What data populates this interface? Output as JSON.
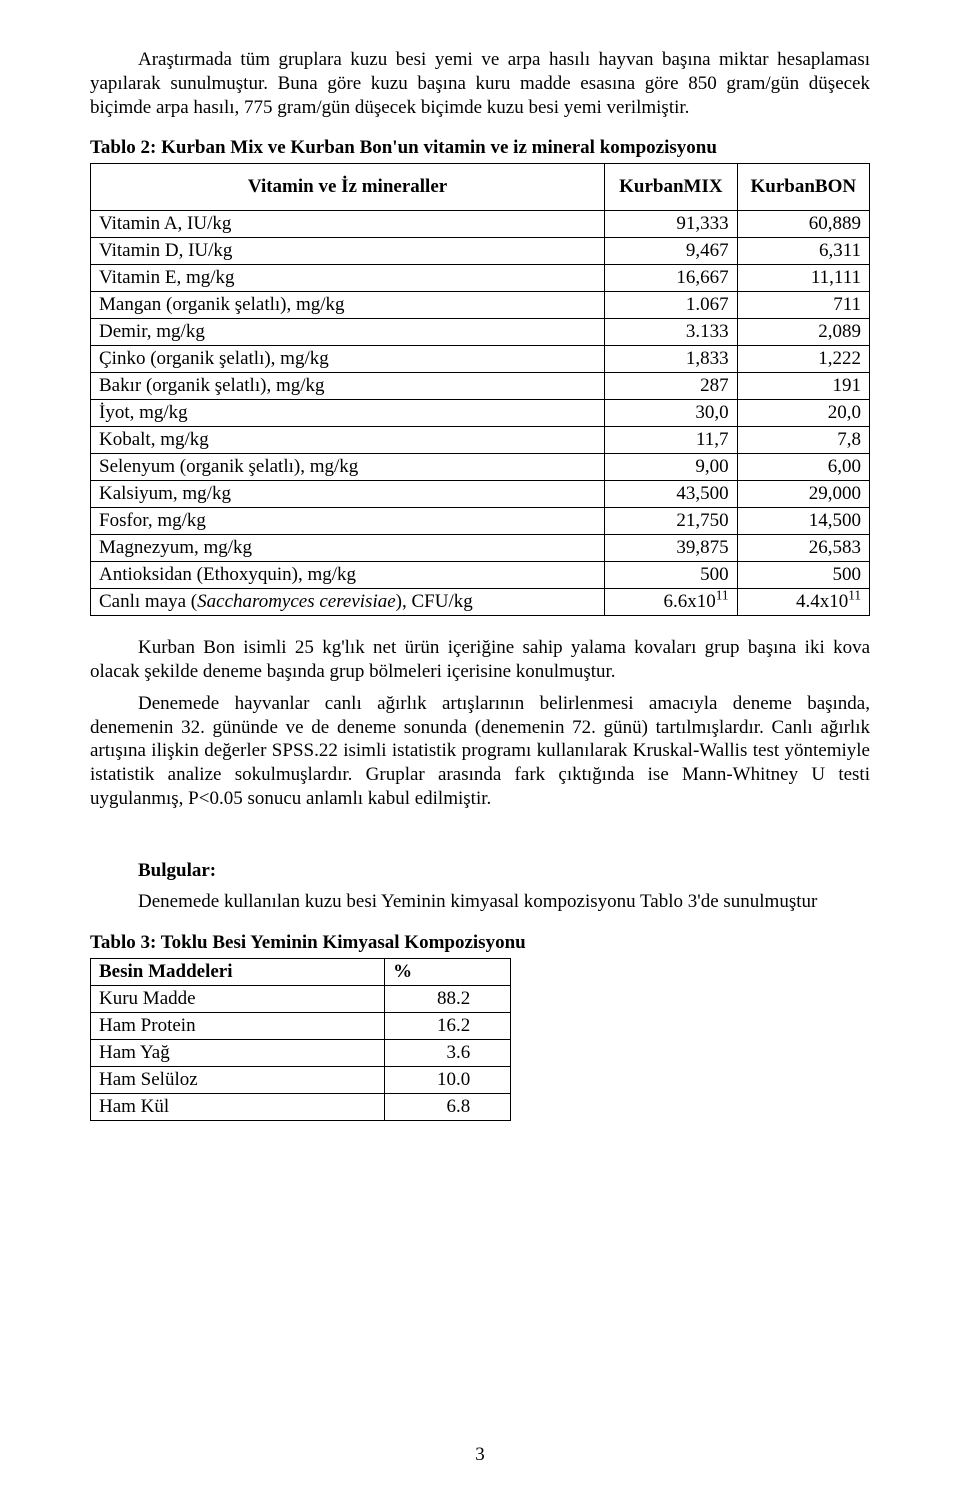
{
  "para1": "Araştırmada tüm gruplara kuzu besi yemi ve arpa hasılı hayvan başına miktar hesaplaması yapılarak sunulmuştur. Buna göre kuzu başına kuru madde esasına göre 850 gram/gün düşecek biçimde arpa hasılı, 775 gram/gün düşecek biçimde kuzu besi yemi verilmiştir.",
  "table2": {
    "caption": "Tablo 2: Kurban Mix ve Kurban Bon'un vitamin ve iz mineral kompozisyonu",
    "headers": [
      "Vitamin ve İz mineraller",
      "KurbanMIX",
      "KurbanBON"
    ],
    "rows": [
      {
        "label": "Vitamin A, IU/kg",
        "mix": "91,333",
        "bon": "60,889"
      },
      {
        "label": "Vitamin D, IU/kg",
        "mix": "9,467",
        "bon": "6,311"
      },
      {
        "label": "Vitamin E, mg/kg",
        "mix": "16,667",
        "bon": "11,111"
      },
      {
        "label": "Mangan (organik şelatlı), mg/kg",
        "mix": "1.067",
        "bon": "711"
      },
      {
        "label": "Demir, mg/kg",
        "mix": "3.133",
        "bon": "2,089"
      },
      {
        "label": "Çinko (organik şelatlı), mg/kg",
        "mix": "1,833",
        "bon": "1,222"
      },
      {
        "label": "Bakır (organik şelatlı), mg/kg",
        "mix": "287",
        "bon": "191"
      },
      {
        "label": "İyot, mg/kg",
        "mix": "30,0",
        "bon": "20,0"
      },
      {
        "label": "Kobalt, mg/kg",
        "mix": "11,7",
        "bon": "7,8"
      },
      {
        "label": "Selenyum (organik şelatlı), mg/kg",
        "mix": "9,00",
        "bon": "6,00"
      },
      {
        "label": "Kalsiyum, mg/kg",
        "mix": "43,500",
        "bon": "29,000"
      },
      {
        "label": "Fosfor, mg/kg",
        "mix": "21,750",
        "bon": "14,500"
      },
      {
        "label": "Magnezyum, mg/kg",
        "mix": "39,875",
        "bon": "26,583"
      },
      {
        "label": "Antioksidan (Ethoxyquin), mg/kg",
        "mix": "500",
        "bon": "500"
      }
    ],
    "lastrow": {
      "label_pre": "Canlı maya (",
      "label_italic": "Saccharomyces cerevisiae",
      "label_post": "), CFU/kg",
      "mix_base": "6.6x10",
      "mix_sup": "11",
      "bon_base": "4.4x10",
      "bon_sup": "11"
    }
  },
  "para2": "Kurban Bon isimli 25 kg'lık net ürün içeriğine sahip yalama kovaları grup başına iki kova olacak şekilde deneme başında grup bölmeleri içerisine konulmuştur.",
  "para3": "Denemede hayvanlar canlı ağırlık artışlarının belirlenmesi amacıyla deneme başında, denemenin 32. gününde ve de deneme sonunda (denemenin 72. günü) tartılmışlardır.  Canlı ağırlık artışına ilişkin değerler SPSS.22 isimli istatistik programı kullanılarak Kruskal-Wallis test yöntemiyle istatistik analize sokulmuşlardır. Gruplar arasında fark çıktığında ise Mann-Whitney U testi uygulanmış, P<0.05 sonucu anlamlı kabul edilmiştir.",
  "bulgular_label": "Bulgular:",
  "para4": "Denemede kullanılan kuzu besi Yeminin kimyasal kompozisyonu Tablo 3'de sunulmuştur",
  "table3": {
    "caption": "Tablo 3: Toklu Besi Yeminin Kimyasal Kompozisyonu",
    "headers": [
      "Besin Maddeleri",
      "%"
    ],
    "rows": [
      {
        "label": "Kuru Madde",
        "val": "88.2"
      },
      {
        "label": "Ham Protein",
        "val": "16.2"
      },
      {
        "label": "Ham Yağ",
        "val": "3.6"
      },
      {
        "label": "Ham Selüloz",
        "val": "10.0"
      },
      {
        "label": "Ham Kül",
        "val": "6.8"
      }
    ]
  },
  "page_number": "3"
}
